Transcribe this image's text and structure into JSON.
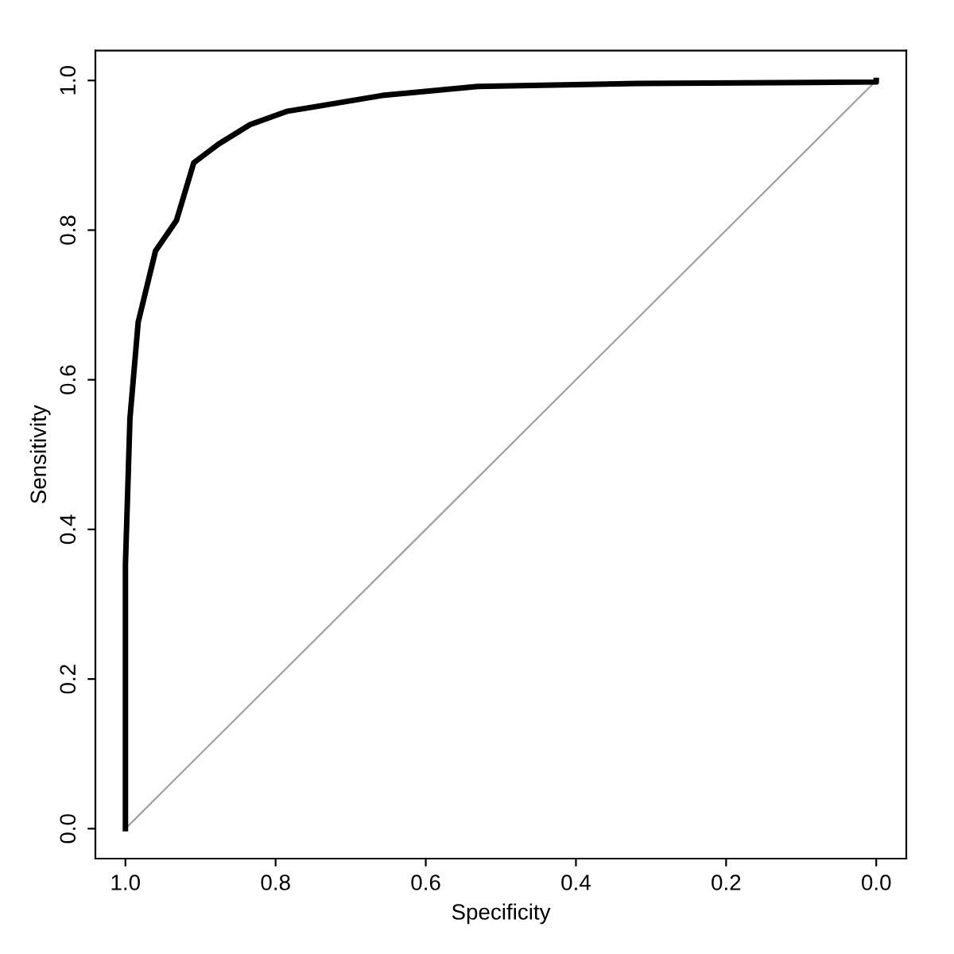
{
  "chart_data": {
    "type": "line",
    "xlabel": "Specificity",
    "ylabel": "Sensitivity",
    "xlim": [
      1.04,
      -0.04
    ],
    "ylim": [
      -0.04,
      1.04
    ],
    "xticks": [
      {
        "value": 1,
        "label": "1.0"
      },
      0.8,
      0.6,
      0.4,
      0.2,
      {
        "value": 0,
        "label": "0.0"
      }
    ],
    "yticks": [
      {
        "value": 0,
        "label": "0.0"
      },
      0.2,
      0.4,
      0.6,
      0.8,
      {
        "value": 1,
        "label": "1.0"
      }
    ],
    "grid": false,
    "legend": false,
    "series": [
      {
        "color": "#a0a0a0",
        "x": [
          1,
          0
        ],
        "values": [
          0,
          1
        ]
      },
      {
        "color": "#000000",
        "x": [
          1.0,
          1.0,
          0.994,
          0.983,
          0.96,
          0.932,
          0.909,
          0.876,
          0.834,
          0.784,
          0.753,
          0.658,
          0.531,
          0.319,
          0.0,
          0.0
        ],
        "values": [
          0.0,
          0.353,
          0.548,
          0.677,
          0.772,
          0.813,
          0.89,
          0.915,
          0.941,
          0.959,
          0.964,
          0.98,
          0.992,
          0.996,
          0.998,
          1.0
        ]
      }
    ]
  }
}
